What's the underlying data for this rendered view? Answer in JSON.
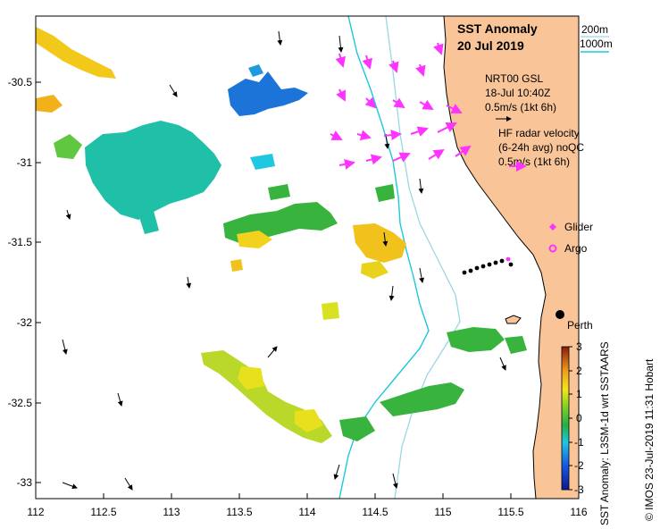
{
  "map": {
    "title": "SST Anomaly",
    "date": "20 Jul 2019",
    "isobath_legend": [
      "200m",
      "1000m"
    ],
    "isobath_colors": [
      "#9ad7e3",
      "#1ec8d8"
    ],
    "nrt_block": [
      "NRT00 GSL",
      "18-Jul 10:40Z",
      "0.5m/s (1kt 6h)"
    ],
    "hf_block": [
      "HF radar velocity",
      "(6-24h avg) noQC",
      "0.5m/s (1kt 6h)"
    ],
    "hf_color": "#ff33ff",
    "land_color": "#f9c598",
    "markers": {
      "glider": "Glider",
      "argo": "Argo"
    },
    "place": {
      "name": "Perth"
    },
    "x_ticks": [
      "112",
      "112.5",
      "113",
      "113.5",
      "114",
      "114.5",
      "115",
      "115.5",
      "116"
    ],
    "y_ticks": [
      "-30.5",
      "-31",
      "-31.5",
      "-32",
      "-32.5",
      "-33"
    ],
    "colorbar": {
      "ticks": [
        "3",
        "2",
        "1",
        "0",
        "-1",
        "-2",
        "-3"
      ],
      "label": "SST Anomaly: L3SM-1d wrt SSTAARS",
      "range": [
        -3,
        3
      ]
    },
    "credit": "© IMOS 23-Jul-2019 11:31 Hobart"
  }
}
